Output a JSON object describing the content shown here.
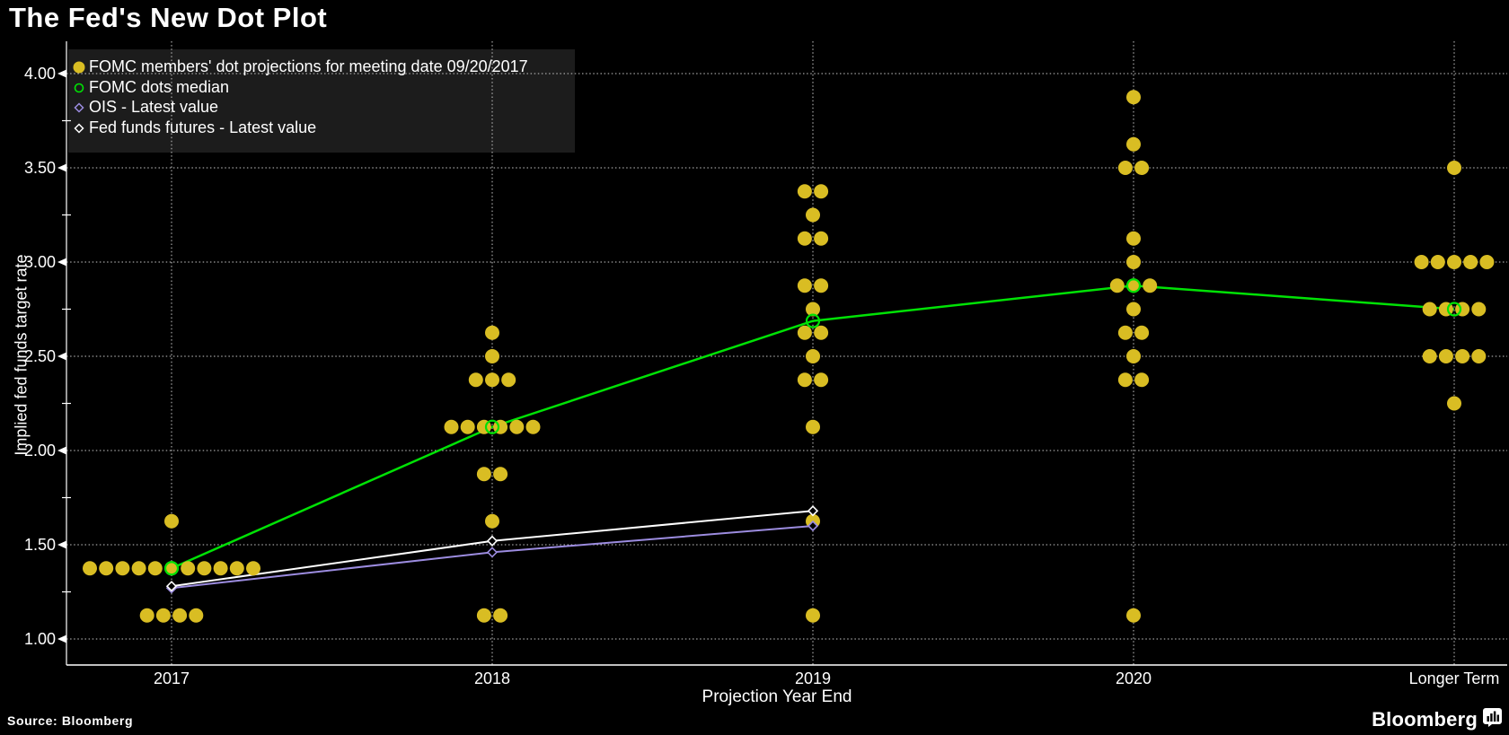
{
  "title": "The Fed's New Dot Plot",
  "source_label": "Source: Bloomberg",
  "brand": {
    "name": "Bloomberg"
  },
  "chart_data": {
    "type": "scatter",
    "title": "The Fed's New Dot Plot",
    "xlabel": "Projection Year End",
    "ylabel": "Implied fed funds target rate",
    "categories": [
      "2017",
      "2018",
      "2019",
      "2020",
      "Longer Term"
    ],
    "yticks": [
      "1.00",
      "1.50",
      "2.00",
      "2.50",
      "3.00",
      "3.50",
      "4.00"
    ],
    "minor_yticks": [
      1.25,
      1.75,
      2.25,
      2.75,
      3.25,
      3.75
    ],
    "ylim": [
      0.86,
      4.16
    ],
    "grid": true,
    "legend_position": "top-left",
    "colors": {
      "background": "#000000",
      "dots": "#d9bd23",
      "median": "#00e205",
      "ois": "#9c8ce0",
      "futures": "#ffffff",
      "gridline": "#c8c8c8",
      "legend_background": "#1c1c1c"
    },
    "series": [
      {
        "name": "FOMC members' dot projections for meeting date 09/20/2017",
        "type": "dot-distribution",
        "marker": "filled-circle",
        "color": "#d9bd23",
        "distribution": [
          {
            "category": "2017",
            "dots": [
              {
                "rate": 1.625,
                "count": 1
              },
              {
                "rate": 1.375,
                "count": 11
              },
              {
                "rate": 1.125,
                "count": 4
              }
            ]
          },
          {
            "category": "2018",
            "dots": [
              {
                "rate": 2.625,
                "count": 1
              },
              {
                "rate": 2.5,
                "count": 1
              },
              {
                "rate": 2.375,
                "count": 3
              },
              {
                "rate": 2.125,
                "count": 6
              },
              {
                "rate": 1.875,
                "count": 2
              },
              {
                "rate": 1.625,
                "count": 1
              },
              {
                "rate": 1.125,
                "count": 2
              }
            ]
          },
          {
            "category": "2019",
            "dots": [
              {
                "rate": 3.375,
                "count": 2
              },
              {
                "rate": 3.25,
                "count": 1
              },
              {
                "rate": 3.125,
                "count": 2
              },
              {
                "rate": 2.875,
                "count": 2
              },
              {
                "rate": 2.75,
                "count": 1
              },
              {
                "rate": 2.625,
                "count": 2
              },
              {
                "rate": 2.5,
                "count": 1
              },
              {
                "rate": 2.375,
                "count": 2
              },
              {
                "rate": 2.125,
                "count": 1
              },
              {
                "rate": 1.625,
                "count": 1
              },
              {
                "rate": 1.125,
                "count": 1
              }
            ]
          },
          {
            "category": "2020",
            "dots": [
              {
                "rate": 3.875,
                "count": 1
              },
              {
                "rate": 3.625,
                "count": 1
              },
              {
                "rate": 3.5,
                "count": 2
              },
              {
                "rate": 3.125,
                "count": 1
              },
              {
                "rate": 3.0,
                "count": 1
              },
              {
                "rate": 2.875,
                "count": 3
              },
              {
                "rate": 2.75,
                "count": 1
              },
              {
                "rate": 2.625,
                "count": 2
              },
              {
                "rate": 2.5,
                "count": 1
              },
              {
                "rate": 2.375,
                "count": 2
              },
              {
                "rate": 1.125,
                "count": 1
              }
            ]
          },
          {
            "category": "Longer Term",
            "dots": [
              {
                "rate": 3.5,
                "count": 1
              },
              {
                "rate": 3.0,
                "count": 5
              },
              {
                "rate": 2.75,
                "count": 4
              },
              {
                "rate": 2.5,
                "count": 4
              },
              {
                "rate": 2.25,
                "count": 1
              }
            ]
          }
        ]
      },
      {
        "name": "FOMC dots median",
        "type": "line",
        "marker": "open-circle",
        "color": "#00e205",
        "x": [
          "2017",
          "2018",
          "2019",
          "2020",
          "Longer Term"
        ],
        "values": [
          1.375,
          2.125,
          2.6875,
          2.875,
          2.75
        ]
      },
      {
        "name": "OIS - Latest value",
        "type": "line",
        "marker": "open-diamond",
        "color": "#9c8ce0",
        "x": [
          "2017",
          "2018",
          "2019"
        ],
        "values": [
          1.27,
          1.46,
          1.6
        ]
      },
      {
        "name": "Fed funds futures - Latest value",
        "type": "line",
        "marker": "open-diamond",
        "color": "#ffffff",
        "x": [
          "2017",
          "2018",
          "2019"
        ],
        "values": [
          1.28,
          1.52,
          1.68
        ]
      }
    ]
  }
}
